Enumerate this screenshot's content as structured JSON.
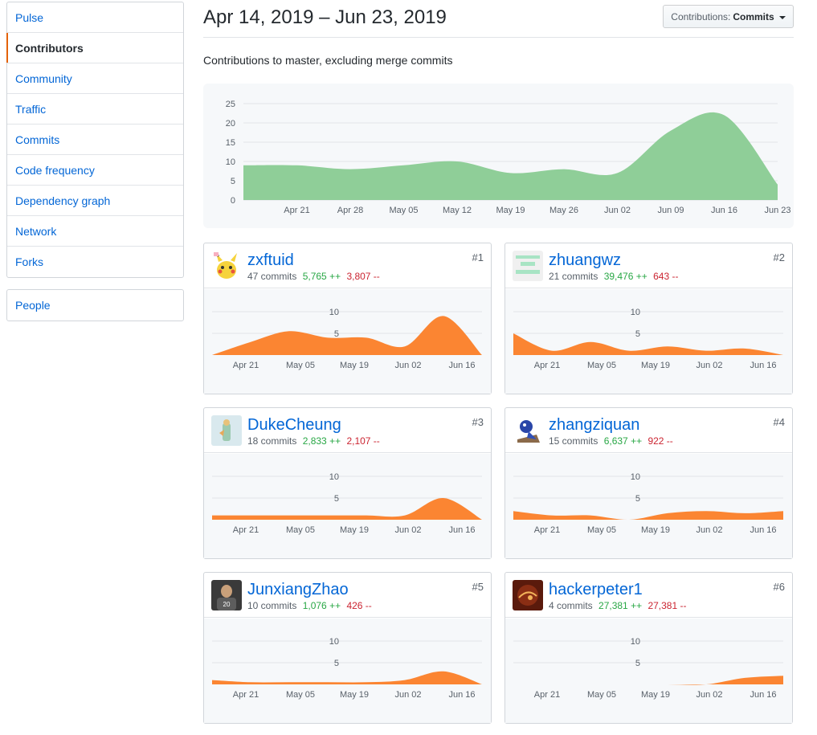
{
  "sidebar": {
    "items": [
      {
        "label": "Pulse"
      },
      {
        "label": "Contributors"
      },
      {
        "label": "Community"
      },
      {
        "label": "Traffic"
      },
      {
        "label": "Commits"
      },
      {
        "label": "Code frequency"
      },
      {
        "label": "Dependency graph"
      },
      {
        "label": "Network"
      },
      {
        "label": "Forks"
      }
    ],
    "selected": "Contributors",
    "people_label": "People"
  },
  "header": {
    "title": "Apr 14, 2019 – Jun 23, 2019",
    "select_label": "Contributions:",
    "select_value": "Commits",
    "subtitle": "Contributions to master, excluding merge commits"
  },
  "colors": {
    "main_fill": "#8fce98",
    "contrib_fill": "#fb8532",
    "accent": "#e36209",
    "link": "#0366d6"
  },
  "chart_data": [
    {
      "type": "area",
      "x": [
        "Apr 14",
        "Apr 21",
        "Apr 28",
        "May 05",
        "May 12",
        "May 19",
        "May 26",
        "Jun 02",
        "Jun 09",
        "Jun 16",
        "Jun 23"
      ],
      "values": [
        9,
        9,
        8,
        9,
        10,
        7,
        8,
        7,
        18,
        22,
        4
      ],
      "ylim": [
        0,
        25
      ],
      "yticks": [
        0,
        5,
        10,
        15,
        20,
        25
      ],
      "xticks": [
        "Apr 21",
        "Apr 28",
        "May 05",
        "May 12",
        "May 19",
        "May 26",
        "Jun 02",
        "Jun 09",
        "Jun 16",
        "Jun 23"
      ],
      "grid": true
    }
  ],
  "contributors": [
    {
      "name": "zxftuid",
      "rank": "#1",
      "commits": "47 commits",
      "additions": "5,765 ++",
      "deletions": "3,807 --",
      "values": [
        0,
        3,
        5.5,
        4,
        4,
        2,
        9,
        0
      ]
    },
    {
      "name": "zhuangwz",
      "rank": "#2",
      "commits": "21 commits",
      "additions": "39,476 ++",
      "deletions": "643 --",
      "values": [
        5,
        1,
        3,
        1,
        2,
        1,
        1.5,
        0
      ]
    },
    {
      "name": "DukeCheung",
      "rank": "#3",
      "commits": "18 commits",
      "additions": "2,833 ++",
      "deletions": "2,107 --",
      "values": [
        1,
        1,
        1,
        1,
        1,
        1,
        5,
        0
      ]
    },
    {
      "name": "zhangziquan",
      "rank": "#4",
      "commits": "15 commits",
      "additions": "6,637 ++",
      "deletions": "922 --",
      "values": [
        2,
        1,
        1,
        0,
        1.5,
        2,
        1.5,
        2
      ]
    },
    {
      "name": "JunxiangZhao",
      "rank": "#5",
      "commits": "10 commits",
      "additions": "1,076 ++",
      "deletions": "426 --",
      "values": [
        1,
        0.5,
        0.5,
        0.5,
        0.5,
        1,
        3,
        0
      ]
    },
    {
      "name": "hackerpeter1",
      "rank": "#6",
      "commits": "4 commits",
      "additions": "27,381 ++",
      "deletions": "27,381 --",
      "values": [
        0,
        0,
        0,
        0,
        0,
        0,
        1.5,
        2
      ]
    }
  ],
  "mini_axis": {
    "xticks": [
      "Apr 21",
      "May 05",
      "May 19",
      "Jun 02",
      "Jun 16"
    ],
    "yticks": [
      "5",
      "10"
    ]
  }
}
